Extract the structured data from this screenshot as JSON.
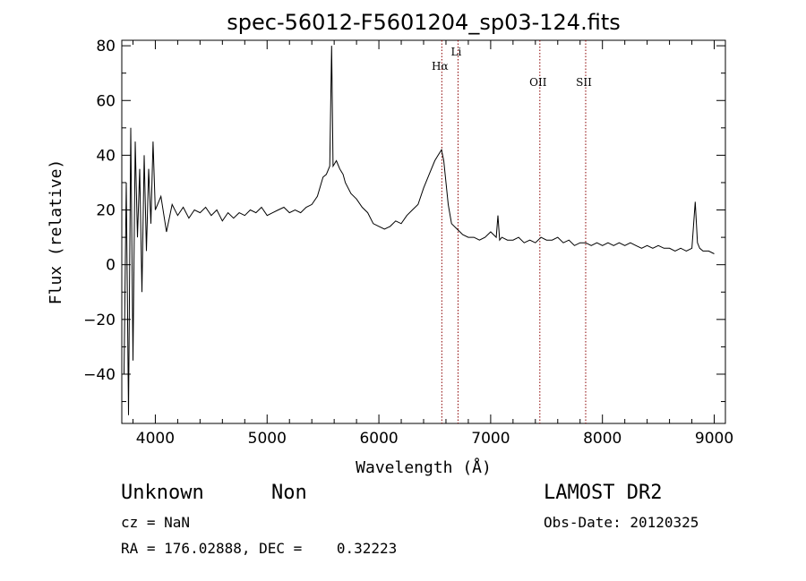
{
  "chart_data": {
    "type": "line",
    "title": "spec-56012-F5601204_sp03-124.fits",
    "xlabel": "Wavelength (Å)",
    "ylabel": "Flux (relative)",
    "xlim": [
      3700,
      9100
    ],
    "ylim": [
      -58,
      82
    ],
    "xticks": [
      4000,
      5000,
      6000,
      7000,
      8000,
      9000
    ],
    "yticks": [
      -40,
      -20,
      0,
      20,
      40,
      60,
      80
    ],
    "grid": false,
    "line_color": "#000000",
    "marker_color": "#8b0000",
    "series": [
      {
        "x": [
          3720,
          3740,
          3760,
          3780,
          3800,
          3820,
          3840,
          3860,
          3880,
          3900,
          3920,
          3940,
          3960,
          3980,
          4000,
          4050,
          4100,
          4150,
          4200,
          4250,
          4300,
          4350,
          4400,
          4450,
          4500,
          4550,
          4600,
          4650,
          4700,
          4750,
          4800,
          4850,
          4900,
          4950,
          5000,
          5050,
          5100,
          5150,
          5200,
          5250,
          5300,
          5350,
          5400,
          5450,
          5500,
          5530,
          5560,
          5577,
          5590,
          5620,
          5650,
          5680,
          5700,
          5750,
          5800,
          5850,
          5900,
          5950,
          6000,
          6050,
          6100,
          6150,
          6200,
          6250,
          6300,
          6350,
          6400,
          6450,
          6500,
          6530,
          6560,
          6580,
          6600,
          6620,
          6650,
          6700,
          6750,
          6800,
          6850,
          6900,
          6950,
          7000,
          7050,
          7065,
          7080,
          7100,
          7150,
          7200,
          7250,
          7300,
          7350,
          7400,
          7450,
          7500,
          7550,
          7600,
          7650,
          7700,
          7750,
          7800,
          7850,
          7900,
          7950,
          8000,
          8050,
          8100,
          8150,
          8200,
          8250,
          8300,
          8350,
          8400,
          8450,
          8500,
          8550,
          8600,
          8650,
          8700,
          8750,
          8800,
          8830,
          8850,
          8870,
          8900,
          8950,
          9000
        ],
        "y": [
          -40,
          30,
          -55,
          50,
          -35,
          45,
          10,
          35,
          -10,
          40,
          5,
          35,
          15,
          45,
          20,
          25,
          12,
          22,
          18,
          21,
          17,
          20,
          19,
          21,
          18,
          20,
          16,
          19,
          17,
          19,
          18,
          20,
          19,
          21,
          18,
          19,
          20,
          21,
          19,
          20,
          19,
          21,
          22,
          25,
          32,
          33,
          36,
          80,
          36,
          38,
          35,
          33,
          30,
          26,
          24,
          21,
          19,
          15,
          14,
          13,
          14,
          16,
          15,
          18,
          20,
          22,
          28,
          33,
          38,
          40,
          42,
          38,
          30,
          22,
          15,
          13,
          11,
          10,
          10,
          9,
          10,
          12,
          10,
          18,
          9,
          10,
          9,
          9,
          10,
          8,
          9,
          8,
          10,
          9,
          9,
          10,
          8,
          9,
          7,
          8,
          8,
          7,
          8,
          7,
          8,
          7,
          8,
          7,
          8,
          7,
          6,
          7,
          6,
          7,
          6,
          6,
          5,
          6,
          5,
          6,
          23,
          8,
          6,
          5,
          5,
          4
        ]
      }
    ],
    "lines": [
      {
        "x": 6563,
        "label": "Hα"
      },
      {
        "x": 6708,
        "label": "Li"
      },
      {
        "x": 7440,
        "label": "OII"
      },
      {
        "x": 7850,
        "label": "SII"
      }
    ]
  },
  "info": {
    "object_class": "Unknown",
    "subclass": "Non",
    "survey": "LAMOST DR2",
    "redshift": "cz = NaN",
    "obs_date": "Obs-Date: 20120325",
    "coords": "RA = 176.02888, DEC =    0.32223"
  }
}
